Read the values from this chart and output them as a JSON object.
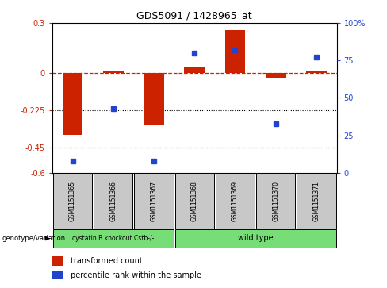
{
  "title": "GDS5091 / 1428965_at",
  "samples": [
    "GSM1151365",
    "GSM1151366",
    "GSM1151367",
    "GSM1151368",
    "GSM1151369",
    "GSM1151370",
    "GSM1151371"
  ],
  "transformed_counts": [
    -0.37,
    0.01,
    -0.31,
    0.04,
    0.255,
    -0.03,
    0.01
  ],
  "percentile_ranks": [
    8,
    43,
    8,
    80,
    82,
    33,
    77
  ],
  "bar_color": "#cc2200",
  "dot_color": "#2244cc",
  "ylim_left": [
    -0.6,
    0.3
  ],
  "ylim_right": [
    0,
    100
  ],
  "yticks_left": [
    -0.6,
    -0.45,
    -0.225,
    0.0,
    0.3
  ],
  "yticks_right": [
    0,
    25,
    50,
    75,
    100
  ],
  "ytick_labels_left": [
    "-0.6",
    "-0.45",
    "-0.225",
    "0",
    "0.3"
  ],
  "ytick_labels_right": [
    "0",
    "25",
    "50",
    "75",
    "100%"
  ],
  "dotted_lines": [
    -0.225,
    -0.45
  ],
  "group1_label": "cystatin B knockout Cstb-/-",
  "group2_label": "wild type",
  "group_color": "#77dd77",
  "group_label_text": "genotype/variation",
  "legend_items": [
    {
      "color": "#cc2200",
      "label": "transformed count"
    },
    {
      "color": "#2244cc",
      "label": "percentile rank within the sample"
    }
  ],
  "sample_box_color": "#c8c8c8"
}
